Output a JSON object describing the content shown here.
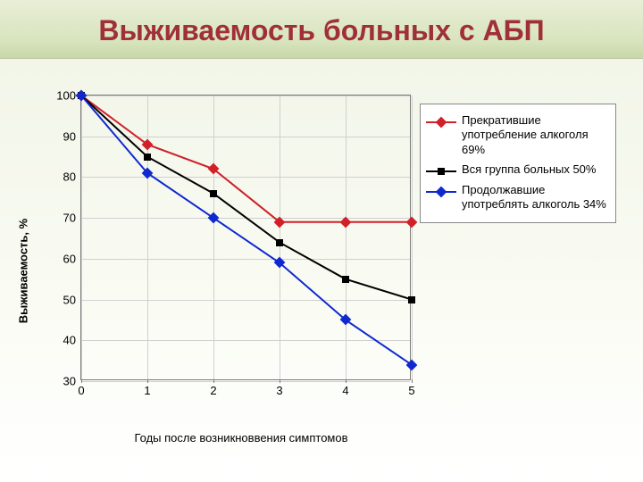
{
  "slide": {
    "title": "Выживаемость больных с АБП",
    "title_color": "#a03038",
    "title_fontsize": 32,
    "title_band_gradient_from": "#e8efd6",
    "title_band_gradient_to": "#c8d8a8"
  },
  "chart": {
    "type": "line",
    "background_top": "#f2f5e8",
    "background_bottom": "#ffffff",
    "plot_border_color": "#7a7a7a",
    "grid_color": "#d0d0d0",
    "y_label": "Выживаемость, %",
    "x_label": "Годы после возникноввения симптомов",
    "label_fontsize": 13,
    "x": {
      "values": [
        0,
        1,
        2,
        3,
        4,
        5
      ],
      "lim": [
        0,
        5
      ],
      "tick_step": 1
    },
    "y": {
      "lim": [
        30,
        100
      ],
      "tick_step": 10
    },
    "series": [
      {
        "id": "stopped",
        "label": "Прекратившие употребление алкоголя 69%",
        "color": "#d02028",
        "marker": "diamond",
        "marker_size": 9,
        "line_width": 2,
        "y": [
          100,
          88,
          82,
          69,
          69,
          69
        ]
      },
      {
        "id": "all",
        "label": "Вся группа больных 50%",
        "color": "#000000",
        "marker": "square",
        "marker_size": 8,
        "line_width": 2,
        "y": [
          100,
          85,
          76,
          64,
          55,
          50
        ]
      },
      {
        "id": "continued",
        "label": "Продолжавшие употреблять алкоголь 34%",
        "color": "#1028d0",
        "marker": "diamond",
        "marker_size": 9,
        "line_width": 2,
        "y": [
          100,
          81,
          70,
          59,
          45,
          34
        ]
      }
    ],
    "legend": {
      "border_color": "#888888",
      "background": "#ffffff",
      "fontsize": 13
    }
  }
}
